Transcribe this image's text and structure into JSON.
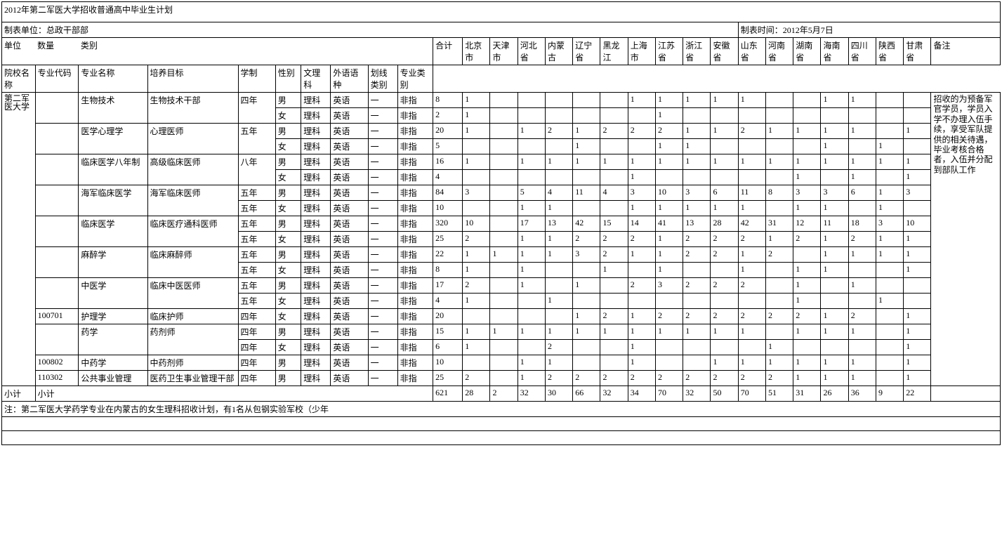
{
  "title": "2012年第二军医大学招收普通高中毕业生计划",
  "makerUnit": "制表单位：总政干部部",
  "makeTime": "制表时间：2012年5月7日",
  "unitLabel": "单位",
  "qtyLabel": "数量",
  "catLabel": "类别",
  "headers": {
    "school": "院校名称",
    "majorCode": "专业代码",
    "majorName": "专业名称",
    "goal": "培养目标",
    "years": "学制",
    "gender": "性别",
    "sciArt": "文理科",
    "lang": "外语语种",
    "lineType": "划线类别",
    "proType": "专业类别",
    "total": "合计",
    "p1": "北京市",
    "p2": "天津市",
    "p3": "河北省",
    "p4": "内蒙古",
    "p5": "辽宁省",
    "p6": "黑龙江",
    "p7": "上海市",
    "p8": "江苏省",
    "p9": "浙江省",
    "p10": "安徽省",
    "p11": "山东省",
    "p12": "河南省",
    "p13": "湖南省",
    "p14": "海南省",
    "p15": "四川省",
    "p16": "陕西省",
    "p17": "甘肃省",
    "remark": "备注"
  },
  "schoolName": "第二军医大学",
  "remark": "招收的为预备军官学员，学员入学不办理入伍手续，享受军队提供的相关待遇，毕业考核合格者，入伍并分配到部队工作",
  "subtotal": "小计",
  "footnote": "注：第二军医大学药学专业在内蒙古的女生理科招收计划，有1名从包钢实验军校（少年",
  "rows": [
    {
      "code": "",
      "major": "生物技术",
      "goal": "生物技术干部",
      "yrs": "四年",
      "g": "男",
      "sci": "理科",
      "lang": "英语",
      "line": "一",
      "pro": "非指",
      "t": "8",
      "v": [
        "1",
        "",
        "",
        "",
        "",
        "",
        "1",
        "1",
        "1",
        "1",
        "1",
        "",
        "",
        "1",
        "1",
        "",
        "",
        ""
      ]
    },
    {
      "g": "女",
      "sci": "理科",
      "lang": "英语",
      "line": "一",
      "pro": "非指",
      "t": "2",
      "v": [
        "1",
        "",
        "",
        "",
        "",
        "",
        "",
        "1",
        "",
        "",
        "",
        "",
        "",
        "",
        "",
        "",
        "",
        ""
      ]
    },
    {
      "code": "",
      "major": "医学心理学",
      "goal": "心理医师",
      "yrs": "五年",
      "g": "男",
      "sci": "理科",
      "lang": "英语",
      "line": "一",
      "pro": "非指",
      "t": "20",
      "v": [
        "1",
        "",
        "1",
        "2",
        "1",
        "2",
        "2",
        "2",
        "1",
        "1",
        "2",
        "1",
        "1",
        "1",
        "1",
        "",
        "1",
        ""
      ]
    },
    {
      "g": "女",
      "sci": "理科",
      "lang": "英语",
      "line": "一",
      "pro": "非指",
      "t": "5",
      "v": [
        "",
        "",
        "",
        "",
        "1",
        "",
        "",
        "1",
        "1",
        "",
        "",
        "",
        "",
        "1",
        "",
        "1",
        "",
        ""
      ]
    },
    {
      "code": "",
      "major": "临床医学八年制",
      "goal": "高级临床医师",
      "yrs": "八年",
      "g": "男",
      "sci": "理科",
      "lang": "英语",
      "line": "一",
      "pro": "非指",
      "t": "16",
      "v": [
        "1",
        "",
        "1",
        "1",
        "1",
        "1",
        "1",
        "1",
        "1",
        "1",
        "1",
        "1",
        "1",
        "1",
        "1",
        "1",
        "1",
        ""
      ]
    },
    {
      "g": "女",
      "sci": "理科",
      "lang": "英语",
      "line": "一",
      "pro": "非指",
      "t": "4",
      "v": [
        "",
        "",
        "",
        "",
        "",
        "",
        "1",
        "",
        "",
        "",
        "",
        "",
        "1",
        "",
        "1",
        "",
        "1",
        ""
      ]
    },
    {
      "code": "",
      "major": "海军临床医学",
      "goal": "海军临床医师",
      "yrs": "五年",
      "g": "男",
      "sci": "理科",
      "lang": "英语",
      "line": "一",
      "pro": "非指",
      "t": "84",
      "v": [
        "3",
        "",
        "5",
        "4",
        "11",
        "4",
        "3",
        "10",
        "3",
        "6",
        "11",
        "8",
        "3",
        "3",
        "6",
        "1",
        "3",
        ""
      ]
    },
    {
      "yrs": "五年",
      "g": "女",
      "sci": "理科",
      "lang": "英语",
      "line": "一",
      "pro": "非指",
      "t": "10",
      "v": [
        "",
        "",
        "1",
        "1",
        "",
        "",
        "1",
        "1",
        "1",
        "1",
        "1",
        "",
        "1",
        "1",
        "",
        "1",
        "",
        ""
      ]
    },
    {
      "code": "",
      "major": "临床医学",
      "goal": "临床医疗通科医师",
      "yrs": "五年",
      "g": "男",
      "sci": "理科",
      "lang": "英语",
      "line": "一",
      "pro": "非指",
      "t": "320",
      "v": [
        "10",
        "",
        "17",
        "13",
        "42",
        "15",
        "14",
        "41",
        "13",
        "28",
        "42",
        "31",
        "12",
        "11",
        "18",
        "3",
        "10",
        ""
      ]
    },
    {
      "yrs": "五年",
      "g": "女",
      "sci": "理科",
      "lang": "英语",
      "line": "一",
      "pro": "非指",
      "t": "25",
      "v": [
        "2",
        "",
        "1",
        "1",
        "2",
        "2",
        "2",
        "1",
        "2",
        "2",
        "2",
        "1",
        "2",
        "1",
        "2",
        "1",
        "1",
        ""
      ]
    },
    {
      "code": "",
      "major": "麻醉学",
      "goal": "临床麻醉师",
      "yrs": "五年",
      "g": "男",
      "sci": "理科",
      "lang": "英语",
      "line": "一",
      "pro": "非指",
      "t": "22",
      "v": [
        "1",
        "1",
        "1",
        "1",
        "3",
        "2",
        "1",
        "1",
        "2",
        "2",
        "1",
        "2",
        "",
        "1",
        "1",
        "1",
        "1",
        ""
      ]
    },
    {
      "yrs": "五年",
      "g": "女",
      "sci": "理科",
      "lang": "英语",
      "line": "一",
      "pro": "非指",
      "t": "8",
      "v": [
        "1",
        "",
        "1",
        "",
        "",
        "1",
        "",
        "1",
        "",
        "",
        "1",
        "",
        "1",
        "1",
        "",
        "",
        "1",
        ""
      ]
    },
    {
      "code": "",
      "major": "中医学",
      "goal": "临床中医医师",
      "yrs": "五年",
      "g": "男",
      "sci": "理科",
      "lang": "英语",
      "line": "一",
      "pro": "非指",
      "t": "17",
      "v": [
        "2",
        "",
        "1",
        "",
        "1",
        "",
        "2",
        "3",
        "2",
        "2",
        "2",
        "",
        "1",
        "",
        "1",
        "",
        "",
        ""
      ]
    },
    {
      "yrs": "五年",
      "g": "女",
      "sci": "理科",
      "lang": "英语",
      "line": "一",
      "pro": "非指",
      "t": "4",
      "v": [
        "1",
        "",
        "",
        "1",
        "",
        "",
        "",
        "",
        "",
        "",
        "",
        "",
        "1",
        "",
        "",
        "1",
        "",
        ""
      ]
    },
    {
      "code": "100701",
      "major": "护理学",
      "goal": "临床护师",
      "yrs": "四年",
      "g": "女",
      "sci": "理科",
      "lang": "英语",
      "line": "一",
      "pro": "非指",
      "t": "20",
      "v": [
        "",
        "",
        "",
        "",
        "1",
        "2",
        "1",
        "2",
        "2",
        "2",
        "2",
        "2",
        "2",
        "1",
        "2",
        "",
        "1",
        ""
      ]
    },
    {
      "code": "",
      "major": "药学",
      "goal": "药剂师",
      "yrs": "四年",
      "g": "男",
      "sci": "理科",
      "lang": "英语",
      "line": "一",
      "pro": "非指",
      "t": "15",
      "v": [
        "1",
        "1",
        "1",
        "1",
        "1",
        "1",
        "1",
        "1",
        "1",
        "1",
        "1",
        "",
        "1",
        "1",
        "1",
        "",
        "1",
        ""
      ]
    },
    {
      "yrs": "四年",
      "g": "女",
      "sci": "理科",
      "lang": "英语",
      "line": "一",
      "pro": "非指",
      "t": "6",
      "v": [
        "1",
        "",
        "",
        "2",
        "",
        "",
        "1",
        "",
        "",
        "",
        "",
        "1",
        "",
        "",
        "",
        "",
        "1",
        ""
      ]
    },
    {
      "code": "100802",
      "major": "中药学",
      "goal": "中药剂师",
      "yrs": "四年",
      "g": "男",
      "sci": "理科",
      "lang": "英语",
      "line": "一",
      "pro": "非指",
      "t": "10",
      "v": [
        "",
        "",
        "1",
        "1",
        "",
        "",
        "1",
        "",
        "",
        "1",
        "1",
        "1",
        "1",
        "1",
        "1",
        "",
        "1",
        ""
      ]
    },
    {
      "code": "110302",
      "major": "公共事业管理",
      "goal": "医药卫生事业管理干部",
      "yrs": "四年",
      "g": "男",
      "sci": "理科",
      "lang": "英语",
      "line": "一",
      "pro": "非指",
      "t": "25",
      "v": [
        "2",
        "",
        "1",
        "2",
        "2",
        "2",
        "2",
        "2",
        "2",
        "2",
        "2",
        "2",
        "1",
        "1",
        "1",
        "",
        "1",
        ""
      ]
    }
  ],
  "totals": {
    "t": "621",
    "v": [
      "28",
      "2",
      "32",
      "30",
      "66",
      "32",
      "34",
      "70",
      "32",
      "50",
      "70",
      "51",
      "31",
      "26",
      "36",
      "9",
      "22",
      ""
    ]
  }
}
